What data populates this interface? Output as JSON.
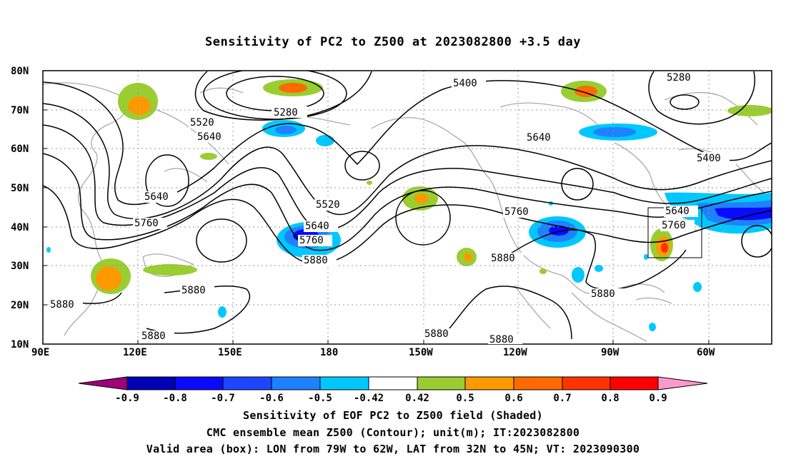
{
  "title": "Sensitivity of PC2 to Z500 at 2023082800 +3.5 day",
  "axes": {
    "lon_labels": [
      "90E",
      "120E",
      "150E",
      "180",
      "150W",
      "120W",
      "90W",
      "60W"
    ],
    "lat_labels": [
      "80N",
      "70N",
      "60N",
      "50N",
      "40N",
      "30N",
      "20N",
      "10N"
    ]
  },
  "contour_labels": [
    "5280",
    "5280",
    "5400",
    "5400",
    "5520",
    "5520",
    "5640",
    "5640",
    "5640",
    "5640",
    "5640",
    "5760",
    "5760",
    "5760",
    "5760",
    "5880",
    "5880",
    "5880",
    "5880",
    "5880",
    "5880",
    "5880",
    "5880"
  ],
  "valid_box": {
    "lon_from": "79W",
    "lon_to": "62W",
    "lat_from": "32N",
    "lat_to": "45N"
  },
  "colorbar": {
    "labels": [
      "-0.9",
      "-0.8",
      "-0.7",
      "-0.6",
      "-0.5",
      "-0.42",
      "0.42",
      "0.5",
      "0.6",
      "0.7",
      "0.8",
      "0.9"
    ],
    "colors": [
      "#a0007a",
      "#0000b4",
      "#0a0aff",
      "#1e46ff",
      "#1e82ff",
      "#00c8ff",
      "#ffffff",
      "#9acd32",
      "#ff9900",
      "#ff6a00",
      "#ff3300",
      "#ff0000",
      "#ff99cc"
    ]
  },
  "footer": {
    "line1": "Sensitivity of EOF PC2 to Z500 field (Shaded)",
    "line2": "CMC ensemble mean Z500 (Contour); unit(m); IT:2023082800",
    "line3": "Valid area (box): LON from 79W to 62W, LAT from 32N to 45N; VT: 2023090300"
  },
  "palette": {
    "coast": "#aaaaaa",
    "grid": "#999999",
    "contour": "#000000",
    "green": "#9acd32",
    "orange": "#ff9900",
    "red": "#ff6a00",
    "lightblue": "#00c8ff",
    "blue": "#1e46ff",
    "darkblue": "#0a0aff"
  }
}
